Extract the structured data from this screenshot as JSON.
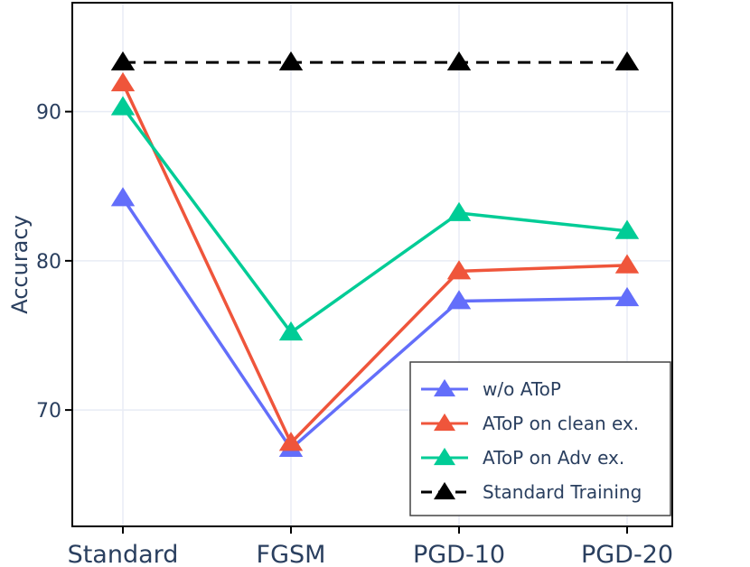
{
  "chart_data": {
    "type": "line",
    "categories": [
      "Standard",
      "FGSM",
      "PGD-10",
      "PGD-20"
    ],
    "ylabel": "Accuracy",
    "ylim": [
      62.2,
      97.3
    ],
    "yticks": [
      70,
      80,
      90
    ],
    "grid": true,
    "legend_position": "bottom-right",
    "series": [
      {
        "name": "w/o AToP",
        "values": [
          84.2,
          67.4,
          77.3,
          77.5
        ],
        "color": "#636efa",
        "dash": "solid"
      },
      {
        "name": "AToP on clean ex.",
        "values": [
          91.9,
          67.8,
          79.3,
          79.7
        ],
        "color": "#ef553b",
        "dash": "solid"
      },
      {
        "name": "AToP on Adv ex.",
        "values": [
          90.3,
          75.2,
          83.2,
          82.0
        ],
        "color": "#00cc96",
        "dash": "solid"
      },
      {
        "name": "Standard Training",
        "values": [
          93.3,
          93.3,
          93.3,
          93.3
        ],
        "color": "#000000",
        "dash": "dashed"
      }
    ]
  }
}
